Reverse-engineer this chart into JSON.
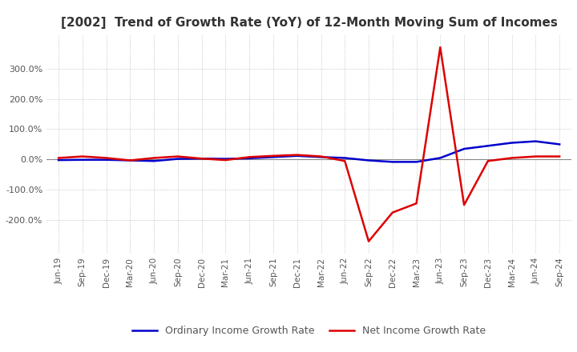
{
  "title": "[2002]  Trend of Growth Rate (YoY) of 12-Month Moving Sum of Incomes",
  "title_fontsize": 11,
  "background_color": "#ffffff",
  "grid_color": "#aaaaaa",
  "ordinary_color": "#0000cc",
  "net_color": "#dd0000",
  "legend_labels": [
    "Ordinary Income Growth Rate",
    "Net Income Growth Rate"
  ],
  "x_labels": [
    "Jun-19",
    "Sep-19",
    "Dec-19",
    "Mar-20",
    "Jun-20",
    "Sep-20",
    "Dec-20",
    "Mar-21",
    "Jun-21",
    "Sep-21",
    "Dec-21",
    "Mar-22",
    "Jun-22",
    "Sep-22",
    "Dec-22",
    "Mar-23",
    "Jun-23",
    "Sep-23",
    "Dec-23",
    "Mar-24",
    "Jun-24",
    "Sep-24"
  ],
  "ordinary_values": [
    -2,
    -1,
    -1,
    -3,
    -5,
    2,
    3,
    2,
    4,
    8,
    12,
    8,
    5,
    -3,
    -8,
    -8,
    5,
    35,
    45,
    55,
    60,
    50
  ],
  "net_values": [
    5,
    10,
    5,
    -3,
    5,
    10,
    3,
    -2,
    8,
    12,
    15,
    10,
    -5,
    -270,
    -175,
    -145,
    370,
    -150,
    -5,
    5,
    10,
    10
  ],
  "ylim": [
    -310,
    410
  ],
  "yticks": [
    -200,
    -100,
    0,
    100,
    200,
    300
  ],
  "zero_line_color": "#888888"
}
